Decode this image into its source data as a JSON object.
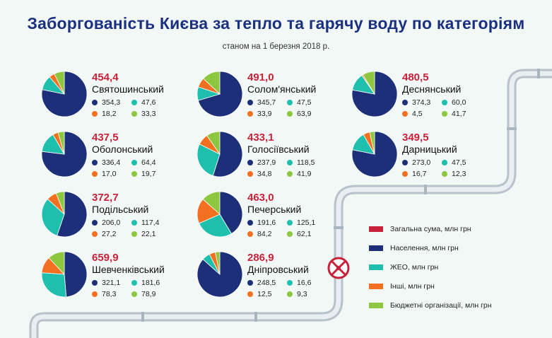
{
  "header": {
    "title": "Заборгованість Києва за тепло та гарячу воду по категоріям",
    "subtitle": "станом на 1 березня 2018 р."
  },
  "colors": {
    "total": "#c8213a",
    "population": "#1c2f78",
    "zheo": "#1fbfae",
    "other": "#f37021",
    "budget": "#8dc63f"
  },
  "legend": [
    {
      "key": "total",
      "label": "Загальна сума, млн грн"
    },
    {
      "key": "population",
      "label": "Населення, млн грн"
    },
    {
      "key": "zheo",
      "label": "ЖЕО, млн грн"
    },
    {
      "key": "other",
      "label": "Інші, млн грн"
    },
    {
      "key": "budget",
      "label": "Бюджетні організації, млн грн"
    }
  ],
  "valve_icon": "valve-icon",
  "chart_data": {
    "type": "pie",
    "title": "Заборгованість Києва за тепло та гарячу воду по категоріям",
    "subtitle": "станом на 1 березня 2018 р.",
    "series_order": [
      "population",
      "zheo",
      "other",
      "budget"
    ],
    "districts": [
      {
        "name": "Святошинський",
        "total": "454,4",
        "values": {
          "population": "354,3",
          "zheo": "47,6",
          "other": "18,2",
          "budget": "33,3"
        }
      },
      {
        "name": "Солом'янський",
        "total": "491,0",
        "values": {
          "population": "345,7",
          "zheo": "47,5",
          "other": "33,9",
          "budget": "63,9"
        }
      },
      {
        "name": "Деснянський",
        "total": "480,5",
        "values": {
          "population": "374,3",
          "zheo": "60,0",
          "other": "4,5",
          "budget": "41,7"
        }
      },
      {
        "name": "Оболонський",
        "total": "437,5",
        "values": {
          "population": "336,4",
          "zheo": "64,4",
          "other": "17,0",
          "budget": "19,7"
        }
      },
      {
        "name": "Голосіївський",
        "total": "433,1",
        "values": {
          "population": "237,9",
          "zheo": "118,5",
          "other": "34,8",
          "budget": "41,9"
        }
      },
      {
        "name": "Дарницький",
        "total": "349,5",
        "values": {
          "population": "273,0",
          "zheo": "47,5",
          "other": "16,7",
          "budget": "12,3"
        }
      },
      {
        "name": "Подільський",
        "total": "372,7",
        "values": {
          "population": "206,0",
          "zheo": "117,4",
          "other": "27,2",
          "budget": "22,1"
        }
      },
      {
        "name": "Печерський",
        "total": "463,0",
        "values": {
          "population": "191,6",
          "zheo": "125,1",
          "other": "84,2",
          "budget": "62,1"
        }
      },
      {
        "name": "Шевченківський",
        "total": "659,9",
        "values": {
          "population": "321,1",
          "zheo": "181,6",
          "other": "78,3",
          "budget": "78,9"
        }
      },
      {
        "name": "Дніпровський",
        "total": "286,9",
        "values": {
          "population": "248,5",
          "zheo": "16,6",
          "other": "12,5",
          "budget": "9,3"
        }
      }
    ]
  }
}
